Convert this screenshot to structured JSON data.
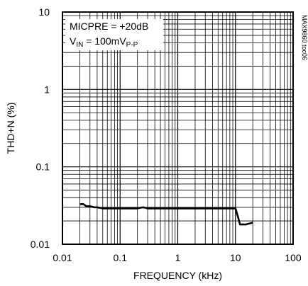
{
  "chart_data": {
    "type": "line",
    "title": "",
    "xlabel": "FREQUENCY (kHz)",
    "ylabel": "THD+N (%)",
    "x_scale": "log",
    "y_scale": "log",
    "xlim": [
      0.01,
      100
    ],
    "ylim": [
      0.01,
      10
    ],
    "grid": true,
    "x_ticks": [
      0.01,
      0.1,
      1,
      10,
      100
    ],
    "x_tick_labels": [
      "0.01",
      "0.1",
      "1",
      "10",
      "100"
    ],
    "y_ticks": [
      0.01,
      0.1,
      1,
      10
    ],
    "y_tick_labels": [
      "0.01",
      "0.1",
      "1",
      "10"
    ],
    "annotations": {
      "line1": "MICPRE = +20dB",
      "line2_prefix": "V",
      "line2_sub": "IN",
      "line2_mid": " = 100mV",
      "line2_sub2": "P-P"
    },
    "figure_id": "MAX9860 toc06",
    "color": "#000000",
    "series": [
      {
        "x": [
          0.02,
          0.023,
          0.026,
          0.03,
          0.035,
          0.04,
          0.05,
          0.06,
          0.08,
          0.1,
          0.15,
          0.2,
          0.25,
          0.3,
          0.5,
          0.7,
          1,
          2,
          3,
          5,
          7,
          9,
          10,
          11,
          12,
          15,
          20
        ],
        "y": [
          0.033,
          0.033,
          0.031,
          0.031,
          0.03,
          0.03,
          0.029,
          0.029,
          0.029,
          0.029,
          0.029,
          0.029,
          0.03,
          0.029,
          0.029,
          0.029,
          0.029,
          0.029,
          0.029,
          0.029,
          0.029,
          0.029,
          0.029,
          0.023,
          0.018,
          0.018,
          0.019
        ]
      }
    ]
  }
}
